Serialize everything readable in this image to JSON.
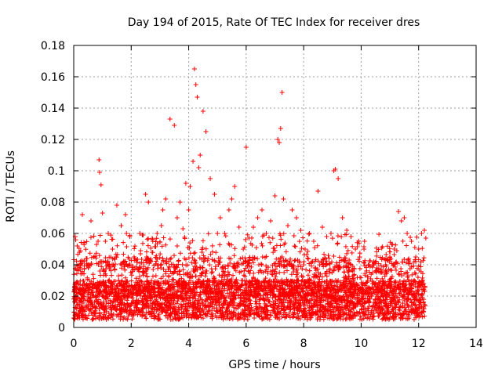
{
  "chart_data": {
    "type": "scatter",
    "title": "Day 194 of 2015, Rate Of TEC Index for receiver dres",
    "xlabel": "GPS time / hours",
    "ylabel": "ROTI / TECUs",
    "xlim": [
      0,
      14
    ],
    "ylim": [
      0,
      0.18
    ],
    "x_ticks": [
      "0",
      "2",
      "4",
      "6",
      "8",
      "10",
      "12",
      "14"
    ],
    "y_ticks": [
      "0",
      "0.02",
      "0.04",
      "0.06",
      "0.08",
      "0.1",
      "0.12",
      "0.14",
      "0.16",
      "0.18"
    ],
    "grid": true,
    "marker": "+",
    "series": [
      {
        "name": "ROTI",
        "color": "#ff0000",
        "x": [
          0.05,
          0.12,
          0.2,
          0.3,
          0.45,
          0.6,
          0.7,
          0.88,
          0.9,
          0.95,
          1.0,
          1.1,
          1.2,
          1.35,
          1.5,
          1.65,
          1.8,
          1.95,
          2.1,
          2.3,
          2.5,
          2.6,
          2.75,
          2.9,
          3.05,
          3.1,
          3.2,
          3.35,
          3.5,
          3.6,
          3.7,
          3.8,
          3.9,
          4.0,
          4.05,
          4.15,
          4.2,
          4.25,
          4.3,
          4.35,
          4.4,
          4.5,
          4.6,
          4.75,
          4.9,
          5.0,
          5.1,
          5.25,
          5.4,
          5.5,
          5.6,
          5.75,
          5.9,
          6.0,
          6.1,
          6.25,
          6.4,
          6.55,
          6.7,
          6.85,
          7.0,
          7.1,
          7.15,
          7.2,
          7.25,
          7.3,
          7.45,
          7.6,
          7.75,
          7.9,
          8.05,
          8.2,
          8.35,
          8.5,
          8.65,
          8.8,
          8.95,
          9.05,
          9.1,
          9.2,
          9.35,
          9.5,
          9.65,
          9.8,
          9.95,
          10.1,
          10.25,
          10.4,
          10.55,
          10.7,
          10.85,
          11.0,
          11.15,
          11.3,
          11.4,
          11.5,
          11.6,
          11.75,
          11.9,
          12.0,
          12.1,
          12.2,
          12.25
        ],
        "y": [
          0.058,
          0.052,
          0.048,
          0.072,
          0.04,
          0.068,
          0.045,
          0.107,
          0.099,
          0.091,
          0.073,
          0.055,
          0.06,
          0.05,
          0.078,
          0.065,
          0.072,
          0.058,
          0.045,
          0.06,
          0.085,
          0.08,
          0.055,
          0.06,
          0.065,
          0.075,
          0.082,
          0.133,
          0.129,
          0.07,
          0.08,
          0.063,
          0.092,
          0.075,
          0.09,
          0.106,
          0.165,
          0.155,
          0.147,
          0.102,
          0.11,
          0.138,
          0.125,
          0.095,
          0.085,
          0.06,
          0.07,
          0.06,
          0.075,
          0.082,
          0.09,
          0.064,
          0.05,
          0.115,
          0.057,
          0.064,
          0.07,
          0.075,
          0.06,
          0.068,
          0.084,
          0.12,
          0.118,
          0.127,
          0.15,
          0.082,
          0.065,
          0.075,
          0.07,
          0.062,
          0.05,
          0.06,
          0.055,
          0.087,
          0.064,
          0.058,
          0.06,
          0.1,
          0.101,
          0.095,
          0.07,
          0.062,
          0.058,
          0.05,
          0.045,
          0.05,
          0.04,
          0.04,
          0.038,
          0.035,
          0.04,
          0.045,
          0.05,
          0.074,
          0.068,
          0.07,
          0.06,
          0.055,
          0.045,
          0.05,
          0.06,
          0.062,
          0.057
        ]
      }
    ]
  }
}
